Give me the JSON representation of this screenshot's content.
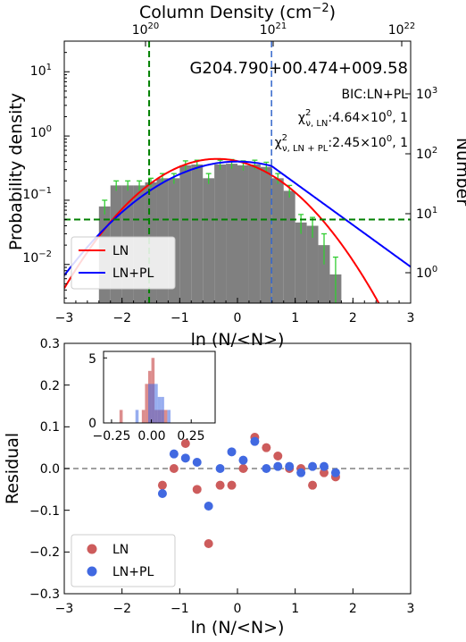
{
  "chart_data": [
    {
      "type": "bar",
      "title": "G204.790+00.474+009.58",
      "xlabel": "ln (N/<N>)",
      "ylabel": "Probability density",
      "top_xlabel": "Column Density (cm−2)",
      "right_ylabel": "Number",
      "xlim": [
        -3,
        3
      ],
      "ylim_log": [
        0.0025,
        30
      ],
      "yscale": "log",
      "x_ticks": [
        "−3",
        "−2",
        "−1",
        "0",
        "1",
        "2",
        "3"
      ],
      "y_ticks": [
        "10−2",
        "10−1",
        "100",
        "101"
      ],
      "top_ticks": [
        "1020",
        "1021",
        "1022"
      ],
      "right_ticks": [
        "100",
        "101",
        "102",
        "103"
      ],
      "annotations": {
        "bic": "BIC:LN+PL",
        "chi_ln": "χ2ν,LN:4.64×100, 1",
        "chi_lnpl": "χ2ν,LN+PL:2.45×100, 1"
      },
      "legend": {
        "placement": "lower-left",
        "entries": [
          "LN",
          "LN+PL"
        ]
      },
      "colors": {
        "bars": "#808080",
        "errorbars": "#32cd32",
        "ln": "#ff0000",
        "lnpl": "#0000ff",
        "vline_green": "#008000",
        "vline_blue": "#3366cc",
        "hline_green": "#008000"
      },
      "bar_width": 0.2,
      "bin_centers": [
        -2.3,
        -2.1,
        -1.9,
        -1.7,
        -1.5,
        -1.3,
        -1.1,
        -0.9,
        -0.7,
        -0.5,
        -0.3,
        -0.1,
        0.1,
        0.3,
        0.5,
        0.7,
        0.9,
        1.1,
        1.3,
        1.5,
        1.7
      ],
      "bin_values": [
        0.08,
        0.17,
        0.17,
        0.17,
        0.19,
        0.22,
        0.22,
        0.35,
        0.36,
        0.22,
        0.36,
        0.37,
        0.35,
        0.36,
        0.33,
        0.22,
        0.14,
        0.045,
        0.04,
        0.02,
        0.007
      ],
      "bin_errors": [
        0.02,
        0.03,
        0.03,
        0.03,
        0.03,
        0.04,
        0.04,
        0.06,
        0.06,
        0.04,
        0.06,
        0.06,
        0.06,
        0.06,
        0.06,
        0.04,
        0.03,
        0.015,
        0.014,
        0.01,
        0.006
      ],
      "ln_fit": {
        "name": "LN",
        "mean": -0.35,
        "sigma": 0.87,
        "amplitude": 0.44
      },
      "lnpl_fit": {
        "name": "LN+PL",
        "breakpoint": 0.59,
        "pl_slope": -1.5,
        "mean": 0.0,
        "sigma": 1.05,
        "amplitude": 0.4
      },
      "vline_green_x": -1.53,
      "vline_blue_x": 0.59,
      "hline_y": 0.05
    },
    {
      "type": "scatter",
      "xlabel": "ln (N/<N>)",
      "ylabel": "Residual",
      "xlim": [
        -3,
        3
      ],
      "ylim": [
        -0.3,
        0.3
      ],
      "x_ticks": [
        "−3",
        "−2",
        "−1",
        "0",
        "1",
        "2",
        "3"
      ],
      "y_ticks": [
        "−0.3",
        "−0.2",
        "−0.1",
        "0.0",
        "0.1",
        "0.2",
        "0.3"
      ],
      "legend": {
        "placement": "lower-left",
        "entries": [
          "LN",
          "LN+PL"
        ]
      },
      "colors": {
        "ln": "#cd5c5c",
        "lnpl": "#4169e1",
        "zero_line": "#808080"
      },
      "series": [
        {
          "name": "LN",
          "x": [
            -1.3,
            -1.1,
            -0.9,
            -0.7,
            -0.5,
            -0.3,
            -0.1,
            0.1,
            0.3,
            0.5,
            0.7,
            0.9,
            1.1,
            1.3,
            1.5,
            1.7
          ],
          "y": [
            -0.04,
            0.0,
            0.06,
            -0.05,
            -0.18,
            -0.04,
            -0.04,
            0.0,
            0.075,
            0.05,
            0.03,
            0.0,
            0.0,
            -0.04,
            -0.01,
            -0.02
          ]
        },
        {
          "name": "LN+PL",
          "x": [
            -1.3,
            -1.1,
            -0.9,
            -0.7,
            -0.5,
            -0.3,
            -0.1,
            0.1,
            0.3,
            0.5,
            0.7,
            0.9,
            1.1,
            1.3,
            1.5,
            1.7
          ],
          "y": [
            -0.06,
            0.035,
            0.025,
            0.015,
            -0.09,
            0.0,
            0.04,
            0.02,
            0.065,
            0.0,
            0.005,
            0.005,
            -0.01,
            0.005,
            0.005,
            -0.01
          ]
        }
      ],
      "inset": {
        "type": "histogram",
        "xlim": [
          -0.3,
          0.4
        ],
        "ylim": [
          0,
          5.5
        ],
        "x_ticks": [
          "−0.25",
          "0.00",
          "0.25"
        ],
        "y_ticks": [
          "0",
          "5"
        ],
        "bin_width": 0.02,
        "ln_bins": [
          [
            -0.2,
            1
          ],
          [
            -0.06,
            1
          ],
          [
            -0.04,
            3
          ],
          [
            -0.02,
            4
          ],
          [
            0.0,
            5
          ],
          [
            0.02,
            1
          ],
          [
            0.04,
            1
          ],
          [
            0.06,
            1
          ],
          [
            0.08,
            1
          ]
        ],
        "lnpl_bins": [
          [
            -0.1,
            1
          ],
          [
            -0.02,
            3
          ],
          [
            0.0,
            3
          ],
          [
            0.02,
            3
          ],
          [
            0.04,
            2
          ],
          [
            0.06,
            2
          ],
          [
            0.1,
            1
          ]
        ]
      }
    }
  ]
}
